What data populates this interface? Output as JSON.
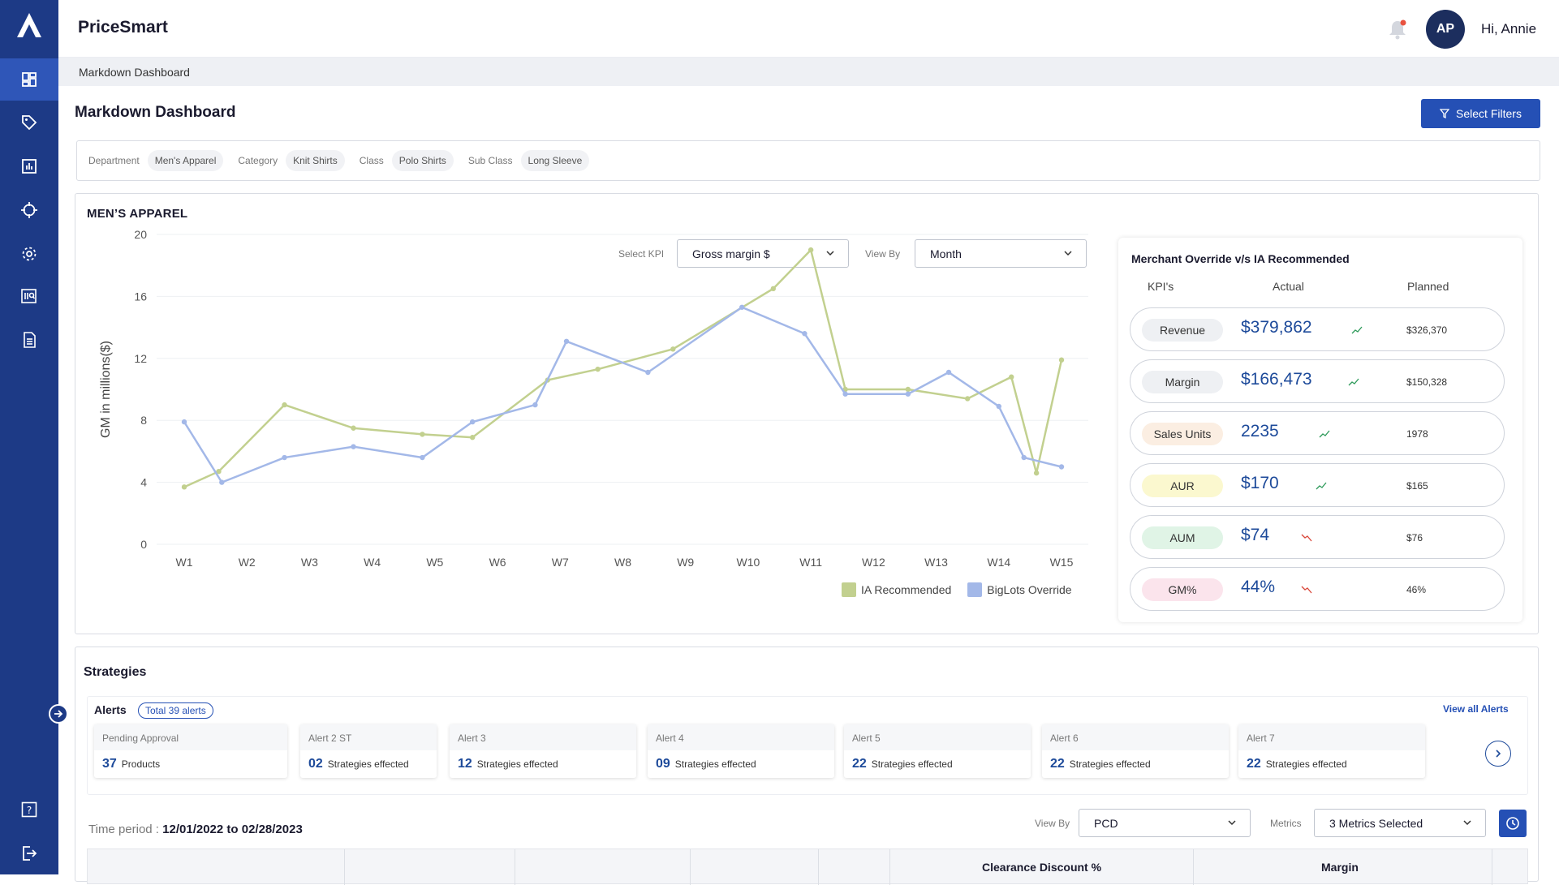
{
  "app": {
    "title": "PriceSmart",
    "user_initials": "AP",
    "greeting": "Hi, Annie"
  },
  "breadcrumb": "Markdown Dashboard",
  "page_title": "Markdown Dashboard",
  "select_filters_label": "Select Filters",
  "filters": [
    {
      "label": "Department",
      "value": "Men's Apparel"
    },
    {
      "label": "Category",
      "value": "Knit Shirts"
    },
    {
      "label": "Class",
      "value": "Polo Shirts"
    },
    {
      "label": "Sub Class",
      "value": "Long Sleeve"
    }
  ],
  "section_title": "MEN’S APPAREL",
  "controls": {
    "kpi_label": "Select KPI",
    "kpi_value": "Gross margin $",
    "viewby_label": "View By",
    "viewby_value": "Month"
  },
  "chart_data": {
    "type": "line",
    "x": [
      "W1",
      "W2",
      "W3",
      "W4",
      "W5",
      "W6",
      "W7",
      "W8",
      "W9",
      "W10",
      "W11",
      "W12",
      "W13",
      "W14",
      "W15"
    ],
    "ylabel": "GM in millions($)",
    "ylim": [
      0,
      20
    ],
    "yticks": [
      0,
      4,
      8,
      12,
      16,
      20
    ],
    "grid": true,
    "legend_position": "bottom-right",
    "series": [
      {
        "name": "IA Recommended",
        "color": "#c2d08f",
        "x": [
          0,
          0.55,
          1.6,
          2.7,
          3.8,
          4.6,
          5.8,
          6.6,
          7.8,
          9.4,
          10.0,
          10.55,
          11.55,
          12.5,
          13.2,
          13.6,
          14.0
        ],
        "values": [
          3.7,
          4.7,
          9.0,
          7.5,
          7.1,
          6.9,
          10.6,
          11.3,
          12.6,
          16.5,
          19.0,
          10.0,
          10.0,
          9.4,
          10.8,
          4.6,
          11.9
        ]
      },
      {
        "name": "BigLots Override",
        "color": "#a3b8e8",
        "x": [
          0,
          0.6,
          1.6,
          2.7,
          3.8,
          4.6,
          5.6,
          6.1,
          7.4,
          8.9,
          9.9,
          10.55,
          11.55,
          12.2,
          13.0,
          13.4,
          14.0
        ],
        "values": [
          7.9,
          4.0,
          5.6,
          6.3,
          5.6,
          7.9,
          9.0,
          13.1,
          11.1,
          15.3,
          13.6,
          9.7,
          9.7,
          11.1,
          8.9,
          5.6,
          5.0
        ]
      }
    ]
  },
  "override": {
    "title": "Merchant Override v/s IA Recommended",
    "headers": [
      "KPI's",
      "Actual",
      "Planned"
    ],
    "rows": [
      {
        "kpi": "Revenue",
        "actual": "$379,862",
        "planned": "$326,370",
        "trend": "up",
        "color": "#eef0f3"
      },
      {
        "kpi": "Margin",
        "actual": "$166,473",
        "planned": "$150,328",
        "trend": "up",
        "color": "#eef0f3"
      },
      {
        "kpi": "Sales Units",
        "actual": "2235",
        "planned": "1978",
        "trend": "up",
        "color": "#fbeee2"
      },
      {
        "kpi": "AUR",
        "actual": "$170",
        "planned": "$165",
        "trend": "up",
        "color": "#fbf8cf"
      },
      {
        "kpi": "AUM",
        "actual": "$74",
        "planned": "$76",
        "trend": "down",
        "color": "#e0f4e6"
      },
      {
        "kpi": "GM%",
        "actual": "44%",
        "planned": "46%",
        "trend": "down",
        "color": "#fbe4ec"
      }
    ]
  },
  "strategies": {
    "title": "Strategies",
    "alerts_label": "Alerts",
    "alerts_badge": "Total 39 alerts",
    "view_all": "View all Alerts",
    "cards": [
      {
        "title": "Pending Approval",
        "num": "37",
        "text": "Products"
      },
      {
        "title": "Alert 2 ST",
        "num": "02",
        "text": "Strategies effected"
      },
      {
        "title": "Alert 3",
        "num": "12",
        "text": "Strategies effected"
      },
      {
        "title": "Alert 4",
        "num": "09",
        "text": "Strategies effected"
      },
      {
        "title": "Alert 5",
        "num": "22",
        "text": "Strategies effected"
      },
      {
        "title": "Alert 6",
        "num": "22",
        "text": "Strategies effected"
      },
      {
        "title": "Alert 7",
        "num": "22",
        "text": "Strategies effected"
      }
    ],
    "time_period_label": "Time period :",
    "time_period_value": "12/01/2022 to 02/28/2023",
    "viewby_label": "View By",
    "viewby_value": "PCD",
    "metrics_label": "Metrics",
    "metrics_value": "3 Metrics Selected",
    "table_headers": {
      "clearance": "Clearance Discount %",
      "margin": "Margin"
    }
  }
}
